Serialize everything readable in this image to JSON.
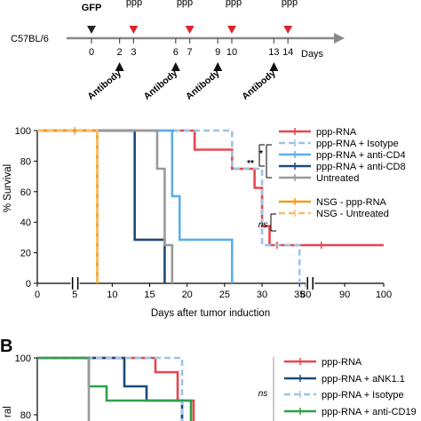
{
  "timeline": {
    "mouse_label": "C57BL/6",
    "gfp_label": "GFP",
    "ppp_label": "ppp",
    "days_label": "Days",
    "day_ticks": [
      0,
      2,
      3,
      6,
      7,
      9,
      10,
      13,
      14
    ],
    "gfp_day": 0,
    "ppp_days": [
      3,
      7,
      10,
      14
    ],
    "antibody_days": [
      2,
      6,
      9,
      13
    ],
    "antibody_label": "Antibody",
    "gfp_arrow_color": "#222222",
    "ppp_arrow_color": "#d9262c"
  },
  "chart_data": [
    {
      "type": "line",
      "subtype": "kaplan-meier",
      "xlabel": "Days after tumor induction",
      "ylabel": "% Survival",
      "ylim": [
        0,
        100
      ],
      "y_ticks": [
        0,
        20,
        40,
        60,
        80,
        100
      ],
      "x_ticks": [
        "0",
        "5",
        "10",
        "15",
        "20",
        "25",
        "30",
        "35",
        "80",
        "90",
        "100"
      ],
      "x_breaks": [
        [
          6,
          75
        ],
        [
          36,
          78
        ]
      ],
      "legend_position": "right",
      "series": [
        {
          "name": "ppp-RNA",
          "color": "#e8464e",
          "dash": false,
          "steps": [
            [
              0,
              100
            ],
            [
              19,
              100
            ],
            [
              21,
              87.5
            ],
            [
              25,
              87.5
            ],
            [
              26,
              75
            ],
            [
              29,
              62.5
            ],
            [
              30,
              37.5
            ],
            [
              31,
              25
            ],
            [
              100,
              25
            ]
          ],
          "censor": [
            [
              32,
              25
            ],
            [
              84,
              25
            ]
          ]
        },
        {
          "name": "ppp-RNA + Isotype",
          "color": "#9ec3e6",
          "dash": true,
          "steps": [
            [
              0,
              100
            ],
            [
              25,
              100
            ],
            [
              26,
              75
            ],
            [
              29,
              75
            ],
            [
              30,
              25
            ],
            [
              34,
              25
            ],
            [
              35,
              0
            ]
          ],
          "censor": []
        },
        {
          "name": "ppp-RNA + anti-CD4",
          "color": "#5aafe8",
          "dash": false,
          "steps": [
            [
              0,
              100
            ],
            [
              17,
              100
            ],
            [
              18,
              57
            ],
            [
              19,
              28.5
            ],
            [
              25,
              28.5
            ],
            [
              26,
              0
            ]
          ],
          "censor": []
        },
        {
          "name": "ppp-RNA + anti-CD8",
          "color": "#1d4a78",
          "dash": false,
          "steps": [
            [
              0,
              100
            ],
            [
              12,
              100
            ],
            [
              13,
              28.5
            ],
            [
              17,
              28.5
            ],
            [
              17,
              0
            ]
          ],
          "censor": []
        },
        {
          "name": "Untreated",
          "color": "#9a9a9a",
          "dash": false,
          "steps": [
            [
              0,
              100
            ],
            [
              15,
              100
            ],
            [
              16,
              75
            ],
            [
              17,
              50
            ],
            [
              17,
              25
            ],
            [
              18,
              25
            ],
            [
              18,
              0
            ]
          ],
          "censor": []
        },
        {
          "name": "NSG - ppp-RNA",
          "color": "#f59a1b",
          "dash": false,
          "steps": [
            [
              0,
              100
            ],
            [
              8,
              100
            ],
            [
              8,
              0
            ]
          ],
          "censor": [
            [
              5,
              100
            ]
          ]
        },
        {
          "name": "NSG - Untreated",
          "color": "#f7bd6b",
          "dash": true,
          "steps": [
            [
              0,
              100
            ],
            [
              8,
              100
            ],
            [
              8,
              0
            ]
          ],
          "censor": []
        }
      ],
      "significance": {
        "first": "**",
        "second": "*",
        "third": "ns"
      }
    },
    {
      "panel_label": "B",
      "type": "line",
      "subtype": "kaplan-meier",
      "ylabel": "% Survival",
      "ylabel_visible": "ral",
      "y_ticks": [
        100,
        80
      ],
      "legend_position": "right",
      "series": [
        {
          "name": "ppp-RNA",
          "color": "#e8464e",
          "dash": false
        },
        {
          "name": "ppp-RNA + aNK1.1",
          "color": "#1d4a78",
          "dash": false
        },
        {
          "name": "ppp-RNA + Isotype",
          "color": "#9ec3e6",
          "dash": true
        },
        {
          "name": "ppp-RNA + anti-CD19",
          "color": "#2ea04a",
          "dash": false
        }
      ],
      "significance": {
        "label": "ns"
      }
    }
  ]
}
